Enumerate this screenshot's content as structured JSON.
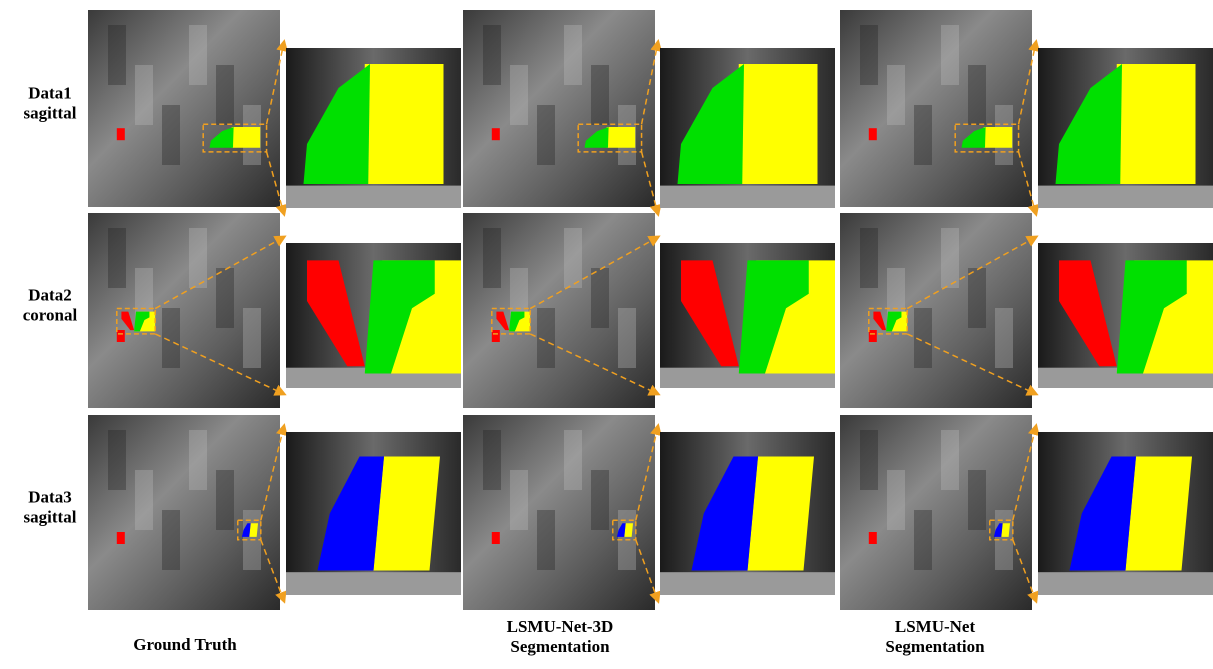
{
  "rows": [
    {
      "lines": [
        "Data1",
        "sagittal"
      ]
    },
    {
      "lines": [
        "Data2",
        "coronal"
      ]
    },
    {
      "lines": [
        "Data3",
        "sagittal"
      ]
    }
  ],
  "columns": [
    {
      "lines": [
        "Ground Truth"
      ]
    },
    {
      "lines": [
        "LSMU-Net-3D",
        "Segmentation"
      ]
    },
    {
      "lines": [
        "LSMU-Net",
        "Segmentation"
      ]
    }
  ]
}
